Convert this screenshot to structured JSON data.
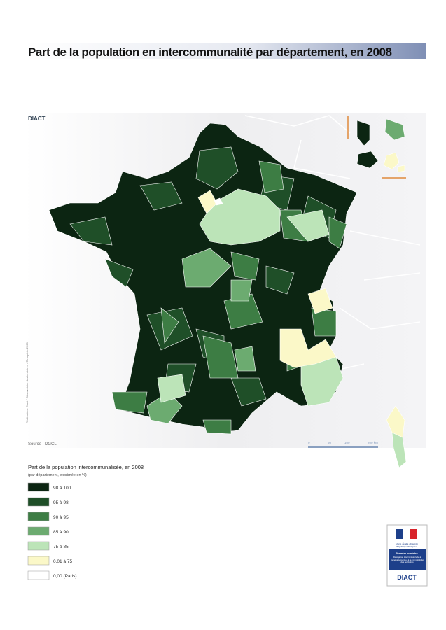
{
  "header": {
    "title": "Part de la population en intercommunalité par département, en 2008"
  },
  "map": {
    "logo": "DIACT",
    "credit": "Réalisation : Diact / Observatoire des territoires - © mapinfo 2008",
    "source": "Source : DGCL",
    "scale": [
      "0",
      "50",
      "100",
      "200 km"
    ]
  },
  "legend": {
    "title": "Part de la population intercommunalisée, en 2008",
    "subtitle": "(par département, exprimée en %)",
    "items": [
      {
        "label": "98 à 100",
        "color": "#0c2512"
      },
      {
        "label": "95 à 98",
        "color": "#1f4f28"
      },
      {
        "label": "90 à 95",
        "color": "#3d7d44"
      },
      {
        "label": "85 à 90",
        "color": "#6cab70"
      },
      {
        "label": "75 à 85",
        "color": "#bce4b8"
      },
      {
        "label": "0,01 à 75",
        "color": "#fbf8c8"
      },
      {
        "label": "0,00 (Paris)",
        "color": "#ffffff"
      }
    ]
  },
  "logo": {
    "motto": "Liberté • Égalité • Fraternité",
    "country": "République Française",
    "ministry": "Premier ministre",
    "body": "Délégation interministérielle à l'aménagement et à la compétitivité des territoires",
    "name": "DIACT"
  }
}
